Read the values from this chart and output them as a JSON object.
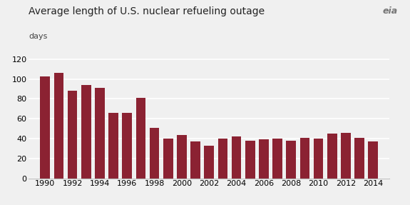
{
  "title": "Average length of U.S. nuclear refueling outage",
  "days_label": "days",
  "bar_color": "#8B2232",
  "background_color": "#f0f0f0",
  "years": [
    1990,
    1991,
    1992,
    1993,
    1994,
    1995,
    1996,
    1997,
    1998,
    1999,
    2000,
    2001,
    2002,
    2003,
    2004,
    2005,
    2006,
    2007,
    2008,
    2009,
    2010,
    2011,
    2012,
    2013,
    2014
  ],
  "values": [
    103,
    106,
    88,
    94,
    91,
    66,
    66,
    81,
    51,
    40,
    44,
    37,
    33,
    40,
    42,
    38,
    39,
    40,
    38,
    41,
    40,
    45,
    46,
    41,
    37
  ],
  "ylim": [
    0,
    128
  ],
  "yticks": [
    0,
    20,
    40,
    60,
    80,
    100,
    120
  ],
  "xtick_labels": [
    "1990",
    "1992",
    "1994",
    "1996",
    "1998",
    "2000",
    "2002",
    "2004",
    "2006",
    "2008",
    "2010",
    "2012",
    "2014"
  ],
  "xtick_positions": [
    1990,
    1992,
    1994,
    1996,
    1998,
    2000,
    2002,
    2004,
    2006,
    2008,
    2010,
    2012,
    2014
  ],
  "title_fontsize": 10,
  "days_fontsize": 8,
  "tick_fontsize": 8,
  "bar_width": 0.72,
  "xlim_left": 1988.8,
  "xlim_right": 2015.2,
  "grid_color": "#ffffff",
  "grid_linewidth": 1.2,
  "spine_color": "#bbbbbb"
}
